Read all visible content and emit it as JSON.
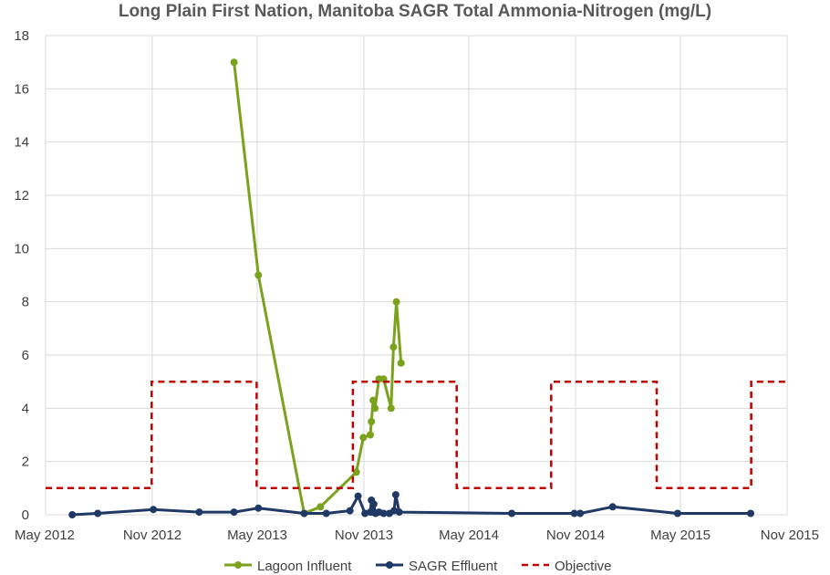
{
  "chart_data": {
    "type": "line",
    "title": "Long Plain First Nation, Manitoba SAGR Total Ammonia-Nitrogen (mg/L)",
    "xlabel": "",
    "ylabel": "",
    "x_axis": {
      "type": "date",
      "range": [
        "2012-05-01",
        "2015-11-01"
      ],
      "tick_labels": [
        "May 2012",
        "Nov 2012",
        "May 2013",
        "Nov 2013",
        "May 2014",
        "Nov 2014",
        "May 2015",
        "Nov 2015"
      ],
      "tick_dates": [
        "2012-05-01",
        "2012-11-01",
        "2013-05-01",
        "2013-11-01",
        "2014-05-01",
        "2014-11-01",
        "2015-05-01",
        "2015-11-01"
      ]
    },
    "y_axis": {
      "range": [
        0,
        18
      ],
      "ticks": [
        0,
        2,
        4,
        6,
        8,
        10,
        12,
        14,
        16,
        18
      ]
    },
    "grid": true,
    "legend_position": "bottom",
    "series": [
      {
        "name": "Lagoon Influent",
        "color": "#7aa21c",
        "style": "solid-markers",
        "points": [
          {
            "x": "2013-03-22",
            "y": 17.0
          },
          {
            "x": "2013-05-03",
            "y": 9.0
          },
          {
            "x": "2013-07-21",
            "y": 0.05
          },
          {
            "x": "2013-08-18",
            "y": 0.3
          },
          {
            "x": "2013-10-19",
            "y": 1.6
          },
          {
            "x": "2013-10-31",
            "y": 2.9
          },
          {
            "x": "2013-11-12",
            "y": 3.0
          },
          {
            "x": "2013-11-14",
            "y": 3.5
          },
          {
            "x": "2013-11-17",
            "y": 4.3
          },
          {
            "x": "2013-11-20",
            "y": 4.0
          },
          {
            "x": "2013-11-27",
            "y": 5.1
          },
          {
            "x": "2013-12-05",
            "y": 5.1
          },
          {
            "x": "2013-12-18",
            "y": 4.0
          },
          {
            "x": "2013-12-22",
            "y": 6.3
          },
          {
            "x": "2013-12-27",
            "y": 8.0
          },
          {
            "x": "2014-01-04",
            "y": 5.7
          }
        ]
      },
      {
        "name": "SAGR Effluent",
        "color": "#1f3864",
        "style": "solid-markers",
        "points": [
          {
            "x": "2012-06-16",
            "y": 0.0
          },
          {
            "x": "2012-07-30",
            "y": 0.05
          },
          {
            "x": "2012-11-03",
            "y": 0.2
          },
          {
            "x": "2013-01-21",
            "y": 0.1
          },
          {
            "x": "2013-03-22",
            "y": 0.1
          },
          {
            "x": "2013-05-03",
            "y": 0.25
          },
          {
            "x": "2013-07-21",
            "y": 0.05
          },
          {
            "x": "2013-08-28",
            "y": 0.05
          },
          {
            "x": "2013-10-08",
            "y": 0.15
          },
          {
            "x": "2013-10-22",
            "y": 0.7
          },
          {
            "x": "2013-11-03",
            "y": 0.05
          },
          {
            "x": "2013-11-12",
            "y": 0.1
          },
          {
            "x": "2013-11-14",
            "y": 0.55
          },
          {
            "x": "2013-11-16",
            "y": 0.1
          },
          {
            "x": "2013-11-18",
            "y": 0.4
          },
          {
            "x": "2013-11-21",
            "y": 0.05
          },
          {
            "x": "2013-11-27",
            "y": 0.1
          },
          {
            "x": "2013-12-05",
            "y": 0.05
          },
          {
            "x": "2013-12-15",
            "y": 0.05
          },
          {
            "x": "2013-12-23",
            "y": 0.15
          },
          {
            "x": "2013-12-26",
            "y": 0.75
          },
          {
            "x": "2014-01-01",
            "y": 0.1
          },
          {
            "x": "2014-07-14",
            "y": 0.05
          },
          {
            "x": "2014-10-30",
            "y": 0.05
          },
          {
            "x": "2014-11-09",
            "y": 0.05
          },
          {
            "x": "2015-01-04",
            "y": 0.3
          },
          {
            "x": "2015-04-26",
            "y": 0.05
          },
          {
            "x": "2015-08-30",
            "y": 0.05
          }
        ]
      },
      {
        "name": "Objective",
        "color": "#c00000",
        "style": "dashed-step",
        "points": [
          {
            "x": "2012-05-01",
            "y": 1.0
          },
          {
            "x": "2012-10-31",
            "y": 1.0
          },
          {
            "x": "2012-10-31",
            "y": 5.0
          },
          {
            "x": "2013-04-30",
            "y": 5.0
          },
          {
            "x": "2013-04-30",
            "y": 1.0
          },
          {
            "x": "2013-10-13",
            "y": 1.0
          },
          {
            "x": "2013-10-13",
            "y": 5.0
          },
          {
            "x": "2014-04-10",
            "y": 5.0
          },
          {
            "x": "2014-04-10",
            "y": 1.0
          },
          {
            "x": "2014-09-20",
            "y": 1.0
          },
          {
            "x": "2014-09-20",
            "y": 5.0
          },
          {
            "x": "2015-03-21",
            "y": 5.0
          },
          {
            "x": "2015-03-21",
            "y": 1.0
          },
          {
            "x": "2015-08-31",
            "y": 1.0
          },
          {
            "x": "2015-08-31",
            "y": 5.0
          },
          {
            "x": "2015-11-01",
            "y": 5.0
          }
        ]
      }
    ]
  }
}
